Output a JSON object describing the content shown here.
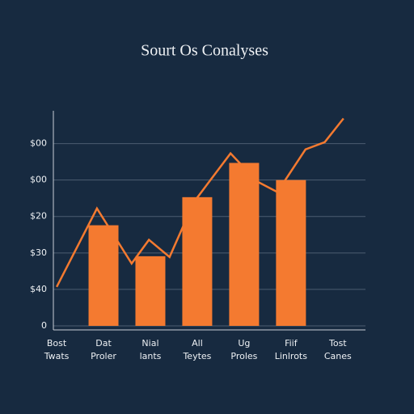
{
  "chart_data": {
    "type": "bar",
    "title": "Sourt Os Conalyses",
    "categories": [
      [
        "Bost",
        "Twats"
      ],
      [
        "Dat",
        "Proler"
      ],
      [
        "Nial",
        "lants"
      ],
      [
        "All",
        "Teytes"
      ],
      [
        "Ug",
        "Proles"
      ],
      [
        "Fiif",
        "Linlrots"
      ],
      [
        "Tost",
        "Canes"
      ]
    ],
    "series": [
      {
        "type": "bar",
        "color": "#f47a30",
        "values": [
          null,
          2.76,
          1.91,
          3.53,
          4.47,
          4.0,
          null
        ]
      },
      {
        "type": "line",
        "color": "#f47a30",
        "x": [
          0,
          0.86,
          1.6,
          1.97,
          2.41,
          2.93,
          3.71,
          4.28,
          4.71,
          5.31,
          5.72,
          6.12
        ],
        "values": [
          1.07,
          3.22,
          1.71,
          2.36,
          1.89,
          3.4,
          4.73,
          3.96,
          3.67,
          4.84,
          5.04,
          5.69
        ]
      }
    ],
    "xlim": [
      -0.07,
      6.59
    ],
    "ylim": [
      0,
      5.9
    ],
    "yticks": [
      0,
      {
        "value": 1,
        "label": "$40"
      },
      {
        "value": 2,
        "label": "$30"
      },
      {
        "value": 3,
        "label": "$20"
      },
      {
        "value": 4,
        "label": "$00"
      },
      {
        "value": 5,
        "label": "$00"
      }
    ],
    "grid": true
  }
}
